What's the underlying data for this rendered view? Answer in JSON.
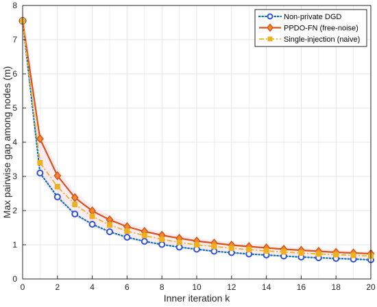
{
  "chart_data": {
    "type": "line",
    "title": "",
    "xlabel": "Inner iteration k",
    "ylabel": "Max pairwise gap among nodes (m)",
    "xlim": [
      0,
      20
    ],
    "ylim": [
      0,
      8
    ],
    "x_ticks": [
      "0",
      "2",
      "4",
      "6",
      "8",
      "10",
      "12",
      "14",
      "16",
      "18",
      "20"
    ],
    "y_ticks": [
      "0",
      "1",
      "2",
      "3",
      "4",
      "5",
      "6",
      "7",
      "8"
    ],
    "grid": true,
    "legend_position": "top-right",
    "x": [
      0,
      1,
      2,
      3,
      4,
      5,
      6,
      7,
      8,
      9,
      10,
      11,
      12,
      13,
      14,
      15,
      16,
      17,
      18,
      19,
      20
    ],
    "series": [
      {
        "name": "Non-private DGD",
        "color": "#0072BD",
        "marker_color": "#2E4FD8",
        "style": "dotted",
        "marker": "circle",
        "values": [
          7.55,
          3.1,
          2.4,
          1.9,
          1.6,
          1.38,
          1.22,
          1.1,
          1.01,
          0.93,
          0.87,
          0.81,
          0.77,
          0.73,
          0.7,
          0.67,
          0.64,
          0.62,
          0.6,
          0.58,
          0.56
        ]
      },
      {
        "name": "PPDO-FN (free-noise)",
        "color": "#D95319",
        "marker_color": "#EF8A2E",
        "style": "solid",
        "marker": "diamond",
        "values": [
          7.55,
          4.1,
          3.02,
          2.38,
          1.99,
          1.73,
          1.53,
          1.39,
          1.28,
          1.19,
          1.11,
          1.05,
          0.99,
          0.95,
          0.91,
          0.87,
          0.84,
          0.81,
          0.78,
          0.76,
          0.74
        ]
      },
      {
        "name": "Single-injection (naive)",
        "color": "#EDB120",
        "marker_color": "#EDB120",
        "style": "dashdot",
        "marker": "square",
        "values": [
          7.55,
          3.4,
          2.7,
          2.18,
          1.83,
          1.58,
          1.4,
          1.27,
          1.16,
          1.07,
          1.0,
          0.95,
          0.9,
          0.86,
          0.82,
          0.79,
          0.76,
          0.73,
          0.71,
          0.69,
          0.67
        ]
      }
    ]
  }
}
